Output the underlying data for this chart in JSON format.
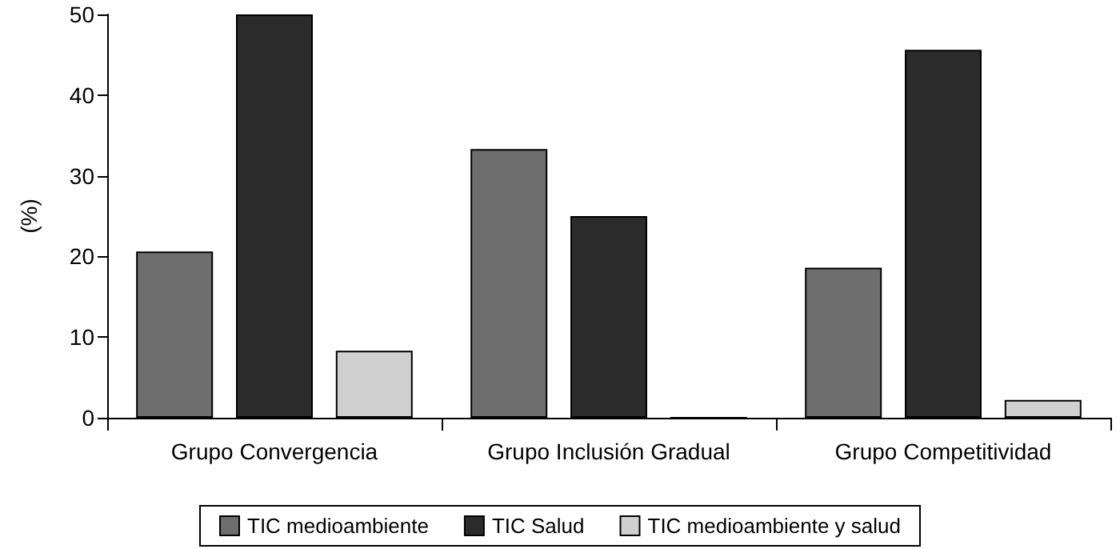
{
  "chart_data": {
    "type": "bar",
    "ylabel": "(%)",
    "categories": [
      "Grupo Convergencia",
      "Grupo Inclusión Gradual",
      "Grupo Competitividad"
    ],
    "series": [
      {
        "name": "TIC medioambiente",
        "color": "#6e6e6e",
        "values": [
          20.6,
          33.3,
          18.6
        ]
      },
      {
        "name": "TIC Salud",
        "color": "#2b2b2b",
        "values": [
          50,
          25,
          45.6
        ]
      },
      {
        "name": "TIC medioambiente y salud",
        "color": "#d0d0d0",
        "values": [
          8.3,
          0,
          2.2
        ]
      }
    ],
    "ylim": [
      0,
      50
    ],
    "yticks": [
      0,
      10,
      20,
      30,
      40,
      50
    ],
    "grid": false,
    "legend": "bottom"
  }
}
